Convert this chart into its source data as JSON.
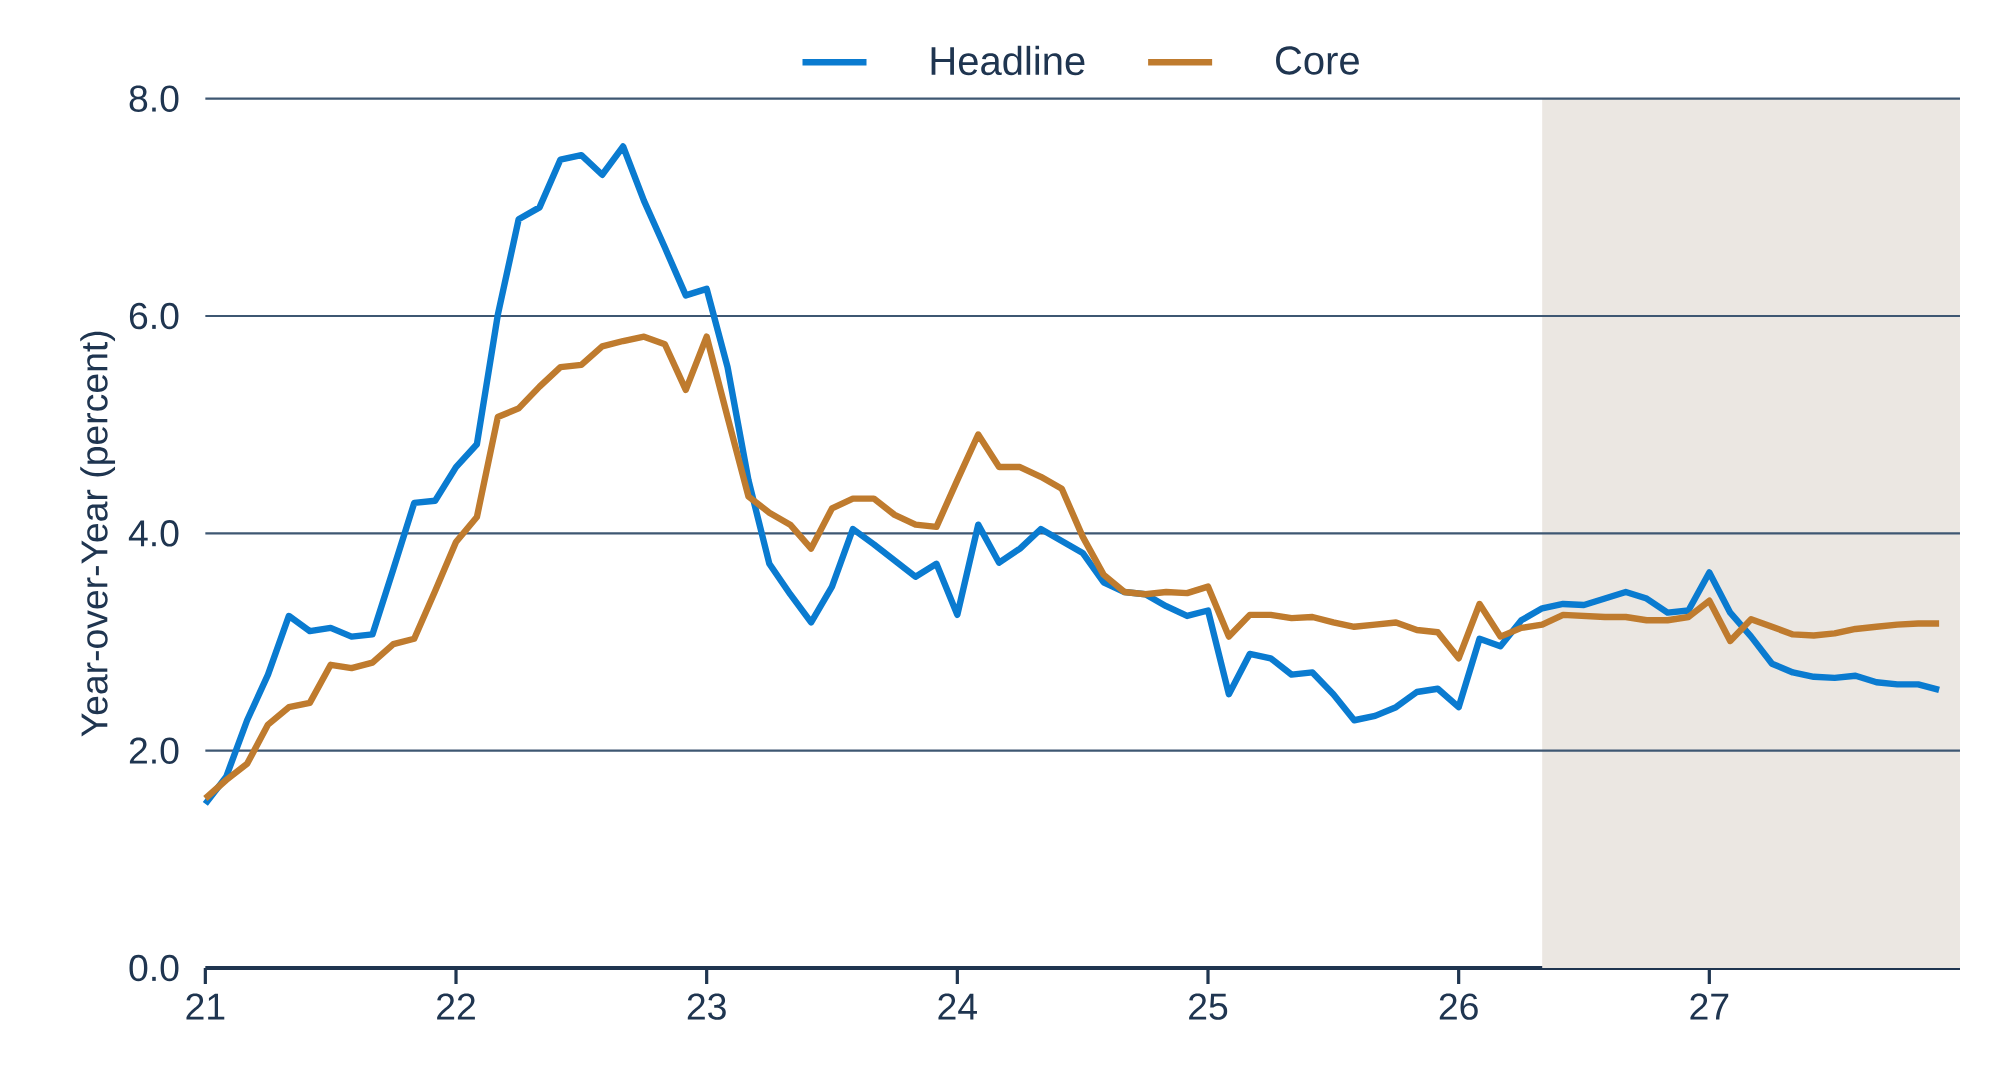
{
  "chart_data": {
    "type": "line",
    "ylabel": "Year-over-Year (percent)",
    "x": [
      "2021-01",
      "2021-02",
      "2021-03",
      "2021-04",
      "2021-05",
      "2021-06",
      "2021-07",
      "2021-08",
      "2021-09",
      "2021-10",
      "2021-11",
      "2021-12",
      "2022-01",
      "2022-02",
      "2022-03",
      "2022-04",
      "2022-05",
      "2022-06",
      "2022-07",
      "2022-08",
      "2022-09",
      "2022-10",
      "2022-11",
      "2022-12",
      "2023-01",
      "2023-02",
      "2023-03",
      "2023-04",
      "2023-05",
      "2023-06",
      "2023-07",
      "2023-08",
      "2023-09",
      "2023-10",
      "2023-11",
      "2023-12",
      "2024-01",
      "2024-02",
      "2024-03",
      "2024-04",
      "2024-05",
      "2024-06",
      "2024-07",
      "2024-08",
      "2024-09",
      "2024-10",
      "2024-11",
      "2024-12",
      "2025-01",
      "2025-02",
      "2025-03",
      "2025-04",
      "2025-05",
      "2025-06",
      "2025-07",
      "2025-08",
      "2025-09",
      "2025-10",
      "2025-11",
      "2025-12",
      "2026-01",
      "2026-02",
      "2026-03",
      "2026-04",
      "2026-05",
      "2026-06",
      "2026-07",
      "2026-08",
      "2026-09",
      "2026-10",
      "2026-11",
      "2026-12",
      "2027-01",
      "2027-02",
      "2027-03",
      "2027-04",
      "2027-05",
      "2027-06",
      "2027-07",
      "2027-08",
      "2027-09",
      "2027-10",
      "2027-11",
      "2027-12"
    ],
    "series": [
      {
        "name": "Headline",
        "color": "#0a7bd0",
        "values": [
          1.51,
          1.76,
          2.28,
          2.7,
          3.24,
          3.1,
          3.13,
          3.05,
          3.07,
          3.67,
          4.28,
          4.3,
          4.61,
          4.82,
          6.01,
          6.89,
          7.0,
          7.44,
          7.48,
          7.3,
          7.56,
          7.06,
          6.63,
          6.19,
          6.25,
          5.53,
          4.49,
          3.72,
          3.44,
          3.18,
          3.51,
          4.04,
          3.9,
          3.75,
          3.6,
          3.72,
          3.25,
          4.08,
          3.73,
          3.86,
          4.04,
          3.93,
          3.82,
          3.55,
          3.46,
          3.44,
          3.33,
          3.24,
          3.29,
          2.52,
          2.89,
          2.85,
          2.7,
          2.72,
          2.52,
          2.28,
          2.32,
          2.4,
          2.54,
          2.57,
          2.4,
          3.03,
          2.96,
          3.2,
          3.31,
          3.35,
          3.34,
          3.4,
          3.46,
          3.4,
          3.27,
          3.29,
          3.64,
          3.27,
          3.05,
          2.8,
          2.72,
          2.68,
          2.67,
          2.69,
          2.63,
          2.61,
          2.61,
          2.56
        ]
      },
      {
        "name": "Core",
        "color": "#bf7b2e",
        "values": [
          1.56,
          1.73,
          1.88,
          2.24,
          2.4,
          2.44,
          2.79,
          2.76,
          2.81,
          2.98,
          3.03,
          3.47,
          3.92,
          4.15,
          5.07,
          5.15,
          5.35,
          5.53,
          5.55,
          5.72,
          5.77,
          5.81,
          5.74,
          5.32,
          5.81,
          5.07,
          4.34,
          4.19,
          4.08,
          3.86,
          4.23,
          4.32,
          4.32,
          4.17,
          4.08,
          4.06,
          4.49,
          4.91,
          4.61,
          4.61,
          4.52,
          4.41,
          3.97,
          3.62,
          3.46,
          3.44,
          3.46,
          3.45,
          3.51,
          3.05,
          3.25,
          3.25,
          3.22,
          3.23,
          3.18,
          3.14,
          3.16,
          3.18,
          3.11,
          3.09,
          2.85,
          3.35,
          3.05,
          3.13,
          3.16,
          3.25,
          3.24,
          3.23,
          3.23,
          3.2,
          3.2,
          3.23,
          3.38,
          3.01,
          3.21,
          3.14,
          3.07,
          3.06,
          3.08,
          3.12,
          3.14,
          3.16,
          3.17,
          3.17
        ]
      }
    ],
    "xlim": [
      "2021",
      "2028"
    ],
    "xticks": [
      {
        "value": "2021",
        "label": "21"
      },
      {
        "value": "2022",
        "label": "22"
      },
      {
        "value": "2023",
        "label": "23"
      },
      {
        "value": "2024",
        "label": "24"
      },
      {
        "value": "2025",
        "label": "25"
      },
      {
        "value": "2026",
        "label": "26"
      },
      {
        "value": "2027",
        "label": "27"
      }
    ],
    "ylim": [
      0,
      8
    ],
    "yticks": [
      {
        "value": 0,
        "label": "0.0"
      },
      {
        "value": 2,
        "label": "2.0"
      },
      {
        "value": 4,
        "label": "4.0"
      },
      {
        "value": 6,
        "label": "6.0"
      },
      {
        "value": 8,
        "label": "8.0"
      }
    ],
    "bands": [
      {
        "axis": "x",
        "from": "2026-05",
        "to": "2028",
        "color": "#ebe7e2"
      }
    ],
    "grid": "y",
    "legend": "top",
    "marker": "none",
    "line_style": "solid"
  }
}
